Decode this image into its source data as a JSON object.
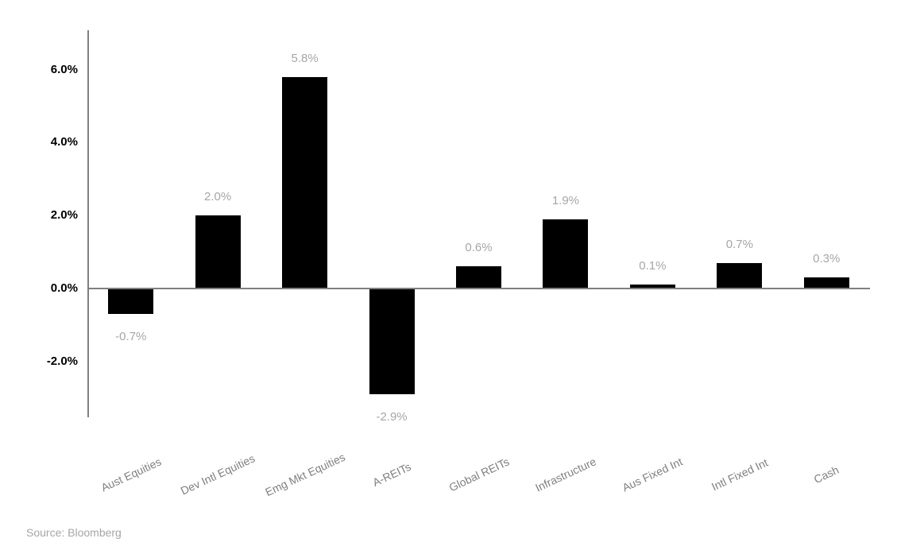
{
  "chart_data": {
    "type": "bar",
    "categories": [
      "Aust Equities",
      "Dev Intl Equities",
      "Emg Mkt Equities",
      "A-REITs",
      "Global REITs",
      "Infrastructure",
      "Aus Fixed Int",
      "Intl Fixed Int",
      "Cash"
    ],
    "values": [
      -0.7,
      2.0,
      5.8,
      -2.9,
      0.6,
      1.9,
      0.1,
      0.7,
      0.3
    ],
    "value_labels": [
      "-0.7%",
      "2.0%",
      "5.8%",
      "-2.9%",
      "0.6%",
      "1.9%",
      "0.1%",
      "0.7%",
      "0.3%"
    ],
    "title": "",
    "xlabel": "",
    "ylabel": "",
    "ylim": [
      -3.5,
      7.1
    ],
    "yticks": [
      {
        "value": 6.0,
        "label": "6.0%"
      },
      {
        "value": 4.0,
        "label": "4.0%"
      },
      {
        "value": 2.0,
        "label": "2.0%"
      },
      {
        "value": 0.0,
        "label": "0.0%"
      },
      {
        "value": -2.0,
        "label": "-2.0%"
      }
    ],
    "grid": false,
    "legend": null,
    "colors": {
      "bar": "#000000",
      "axis": "#808080",
      "tick_label": "#000000",
      "data_label": "#a6a6a6",
      "category_label": "#808080"
    }
  },
  "source": {
    "label": "Source: Bloomberg"
  }
}
